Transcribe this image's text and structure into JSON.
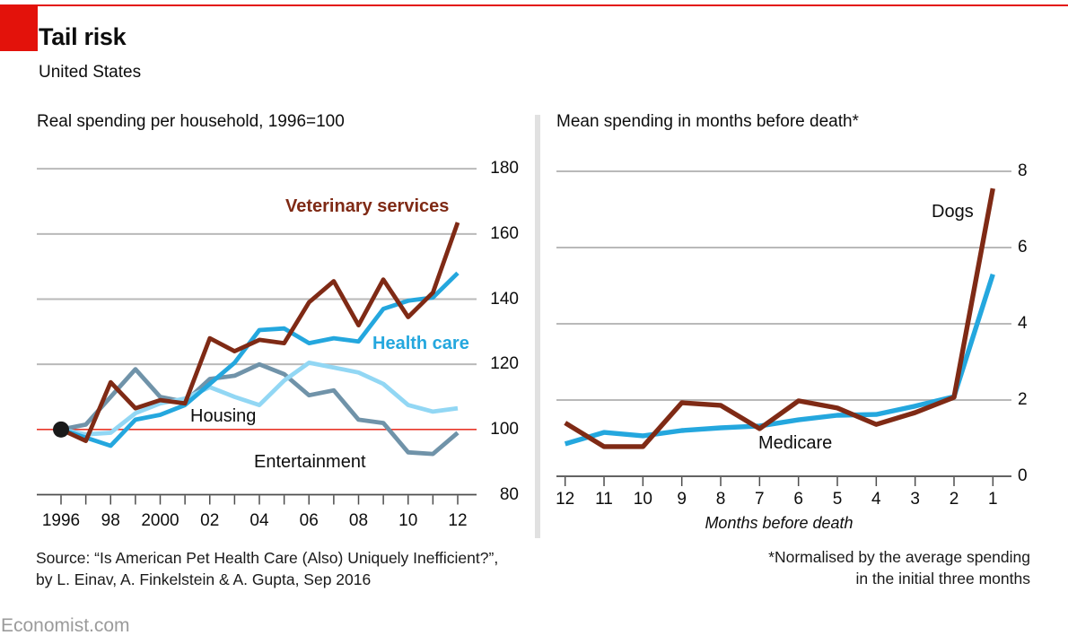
{
  "header": {
    "title": "Tail risk",
    "subtitle": "United States"
  },
  "colors": {
    "accent_red": "#e3120b",
    "baseline_red": "#e8382a",
    "grid": "#b9b9b9",
    "axis": "#4d4d4d",
    "text": "#0d0d0d",
    "muted": "#9b9b9b",
    "divider": "#e1e1e1",
    "start_dot": "#1a1a1a",
    "vet_maroon": "#7f2a15",
    "health_blue": "#24a7de",
    "housing_light_blue": "#92d7f4",
    "entertainment_steel": "#7093a9"
  },
  "chart_data": [
    {
      "type": "line",
      "title": "Real spending per household, 1996=100",
      "x": [
        1996,
        1997,
        1998,
        1999,
        2000,
        2001,
        2002,
        2003,
        2004,
        2005,
        2006,
        2007,
        2008,
        2009,
        2010,
        2011,
        2012
      ],
      "x_tick_labels": [
        "1996",
        "",
        "98",
        "",
        "2000",
        "",
        "02",
        "",
        "04",
        "",
        "06",
        "",
        "08",
        "",
        "10",
        "",
        "12"
      ],
      "y_ticks": [
        80,
        100,
        120,
        140,
        160,
        180
      ],
      "y_tick_labels": [
        "80",
        "100",
        "120",
        "140",
        "160",
        "180"
      ],
      "ylim": [
        80,
        185
      ],
      "grid": "on",
      "baseline": 100,
      "start_marker": {
        "x": 1996,
        "value": 100
      },
      "series": [
        {
          "name": "Veterinary services",
          "color": "#7f2a15",
          "values": [
            100,
            96.5,
            114.5,
            106.5,
            109,
            108,
            128,
            124,
            127.5,
            126.5,
            139,
            145.5,
            132,
            146,
            134.5,
            142,
            163.5
          ]
        },
        {
          "name": "Health care",
          "color": "#24a7de",
          "values": [
            100,
            97.5,
            95,
            103,
            104.5,
            107.5,
            114,
            120.5,
            130.5,
            131,
            126.5,
            128,
            127,
            137,
            139.5,
            140.5,
            148
          ]
        },
        {
          "name": "Housing",
          "color": "#92d7f4",
          "values": [
            100,
            98.5,
            99,
            105,
            108,
            109.5,
            113,
            110,
            107.5,
            115,
            120.5,
            119,
            117.5,
            114,
            107.5,
            105.5,
            106.5
          ]
        },
        {
          "name": "Entertainment",
          "color": "#7093a9",
          "values": [
            100,
            101.5,
            110,
            118.5,
            110,
            108.5,
            115.5,
            116.5,
            120,
            117,
            110.5,
            112,
            103,
            102,
            93,
            92.5,
            99
          ]
        }
      ]
    },
    {
      "type": "line",
      "title": "Mean spending in months before death*",
      "x_tick_labels": [
        "12",
        "11",
        "10",
        "9",
        "8",
        "7",
        "6",
        "5",
        "4",
        "3",
        "2",
        "1"
      ],
      "xlabel": "Months before death",
      "y_ticks": [
        0,
        2,
        4,
        6,
        8
      ],
      "y_tick_labels": [
        "0",
        "2",
        "4",
        "6",
        "8"
      ],
      "ylim": [
        0,
        8
      ],
      "grid": "on",
      "series": [
        {
          "name": "Dogs",
          "color": "#7f2a15",
          "values": [
            1.4,
            0.78,
            0.78,
            1.93,
            1.86,
            1.25,
            1.98,
            1.79,
            1.36,
            1.67,
            2.07,
            7.55
          ]
        },
        {
          "name": "Medicare",
          "color": "#24a7de",
          "values": [
            0.85,
            1.15,
            1.06,
            1.2,
            1.27,
            1.32,
            1.48,
            1.6,
            1.62,
            1.84,
            2.09,
            5.3
          ]
        }
      ]
    }
  ],
  "footer": {
    "source_line1": "Source: “Is American Pet Health Care (Also) Uniquely Inefficient?”,",
    "source_line2": "by L. Einav, A. Finkelstein & A. Gupta, Sep 2016",
    "footnote_line1": "*Normalised by the average spending",
    "footnote_line2": "in the initial three months",
    "brand": "Economist.com"
  }
}
